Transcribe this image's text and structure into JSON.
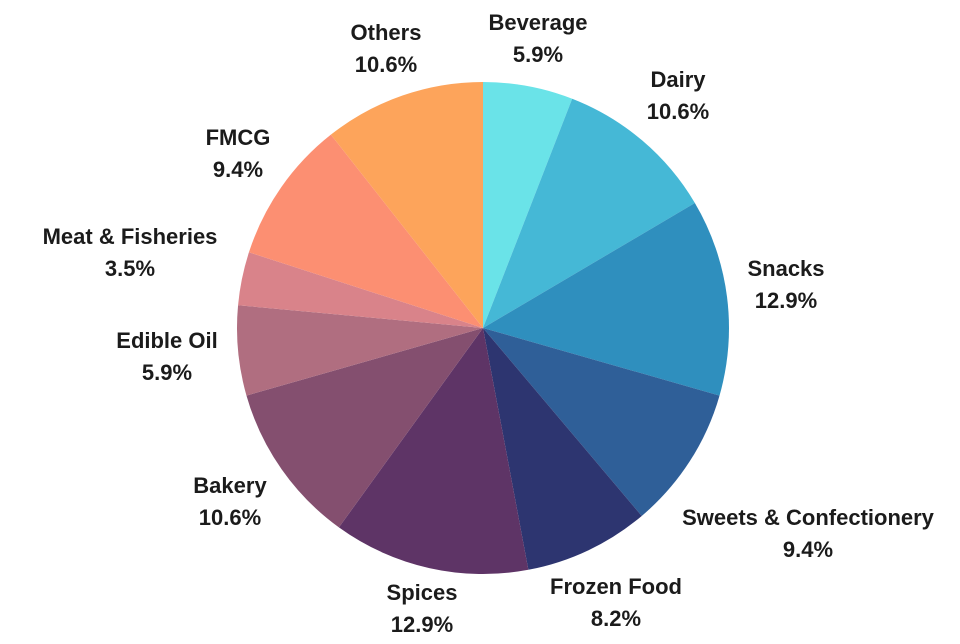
{
  "chart_data": {
    "type": "pie",
    "title": "",
    "start_angle_deg": 0,
    "direction": "clockwise",
    "slices": [
      {
        "label": "Beverage",
        "value_label": "5.9%",
        "value": 5.9,
        "color": "#6ae3e8"
      },
      {
        "label": "Dairy",
        "value_label": "10.6%",
        "value": 10.6,
        "color": "#45b8d6"
      },
      {
        "label": "Snacks",
        "value_label": "12.9%",
        "value": 12.9,
        "color": "#2f8fbe"
      },
      {
        "label": "Sweets & Confectionery",
        "value_label": "9.4%",
        "value": 9.4,
        "color": "#2f5f98"
      },
      {
        "label": "Frozen Food",
        "value_label": "8.2%",
        "value": 8.2,
        "color": "#2d3570"
      },
      {
        "label": "Spices",
        "value_label": "12.9%",
        "value": 12.9,
        "color": "#5e3466"
      },
      {
        "label": "Bakery",
        "value_label": "10.6%",
        "value": 10.6,
        "color": "#844f6f"
      },
      {
        "label": "Edible Oil",
        "value_label": "5.9%",
        "value": 5.9,
        "color": "#b06e80"
      },
      {
        "label": "Meat & Fisheries",
        "value_label": "3.5%",
        "value": 3.5,
        "color": "#d9838a"
      },
      {
        "label": "FMCG",
        "value_label": "9.4%",
        "value": 9.4,
        "color": "#fc8f72"
      },
      {
        "label": "Others",
        "value_label": "10.6%",
        "value": 10.6,
        "color": "#fda45b"
      }
    ]
  }
}
